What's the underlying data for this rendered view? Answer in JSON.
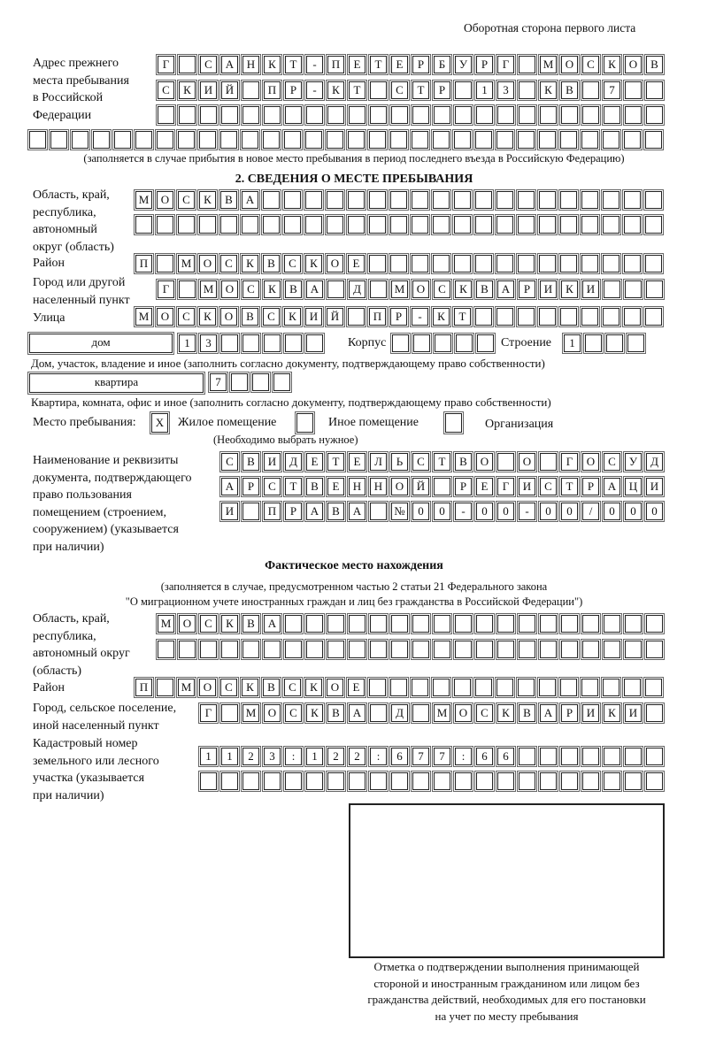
{
  "header": "Оборотная сторона первого листа",
  "prev_address": {
    "label": [
      "Адрес прежнего",
      "места пребывания",
      "в Российской",
      "Федерации"
    ],
    "rows": [
      "Г САНКТ-ПЕТЕРБУРГ МОСКОВ",
      "СКИЙ ПР-КТ СТР 13 КВ 7  ",
      "",
      ""
    ],
    "note": "(заполняется в случае прибытия в новое место пребывания в период последнего въезда в Российскую Федерацию)"
  },
  "section2": {
    "title": "2. СВЕДЕНИЯ О МЕСТЕ ПРЕБЫВАНИЯ",
    "region_label": [
      "Область, край,",
      "республика,",
      "автономный",
      "округ (область)"
    ],
    "region_rows": [
      "МОСКВА",
      ""
    ],
    "district_label": "Район",
    "district_row": "П МОСКВСКОЕ",
    "city_label": [
      "Город или другой",
      "населенный пункт"
    ],
    "city_row": "Г МОСКВА Д МОСКВАРИКИ",
    "street_label": "Улица",
    "street_row": "МОСКОВСКИЙ ПР-КТ",
    "house_type": "дом",
    "house_number": "13",
    "korpus_label": "Корпус",
    "korpus_value": "",
    "stroenie_label": "Строение",
    "stroenie_value": "1",
    "house_note": "Дом, участок, владение и иное (заполнить согласно документу, подтверждающему право собственности)",
    "flat_type": "квартира",
    "flat_number": "7",
    "flat_note": "Квартира, комната, офис и иное (заполнить согласно документу, подтверждающему право собственности)",
    "stay_place_label": "Место пребывания:",
    "stay_options": [
      {
        "label": "Жилое помещение",
        "mark": "X"
      },
      {
        "label": "Иное помещение",
        "mark": ""
      },
      {
        "label": "Организация",
        "mark": ""
      }
    ],
    "stay_note": "(Необходимо выбрать нужное)",
    "doc_label": [
      "Наименование и реквизиты",
      "документа, подтверждающего",
      "право пользования",
      "помещением (строением,",
      "сооружением) (указывается",
      "при наличии)"
    ],
    "doc_rows": [
      "СВИДЕТЕЛЬСТВО О ГОСУД",
      "АРСТВЕННОЙ РЕГИСТРАЦИ",
      "И ПРАВА №00-00-00/000"
    ]
  },
  "actual": {
    "title": "Фактическое место нахождения",
    "note1": "(заполняется в случае, предусмотренном частью 2 статьи 21 Федерального закона",
    "note2": "\"О миграционном учете иностранных граждан и лиц без гражданства в Российской Федерации\")",
    "region_label": [
      "Область, край,",
      "республика,",
      "автономный округ",
      "(область)"
    ],
    "region_rows": [
      "МОСКВА",
      ""
    ],
    "district_label": "Район",
    "district_row": "П МОСКВСКОЕ",
    "city_label": [
      "Город, сельское поселение,",
      "иной населенный пункт"
    ],
    "city_row": "Г МОСКВА Д МОСКВАРИКИ",
    "cadastre_label": [
      "Кадастровый номер",
      "земельного или лесного",
      "участка (указывается",
      "при наличии)"
    ],
    "cadastre_rows": [
      "1123:122:677:66",
      ""
    ]
  },
  "stamp_caption": [
    "Отметка о подтверждении выполнения принимающей",
    "стороной и иностранным гражданином или лицом без",
    "гражданства действий, необходимых для его постановки",
    "на учет по месту пребывания"
  ]
}
